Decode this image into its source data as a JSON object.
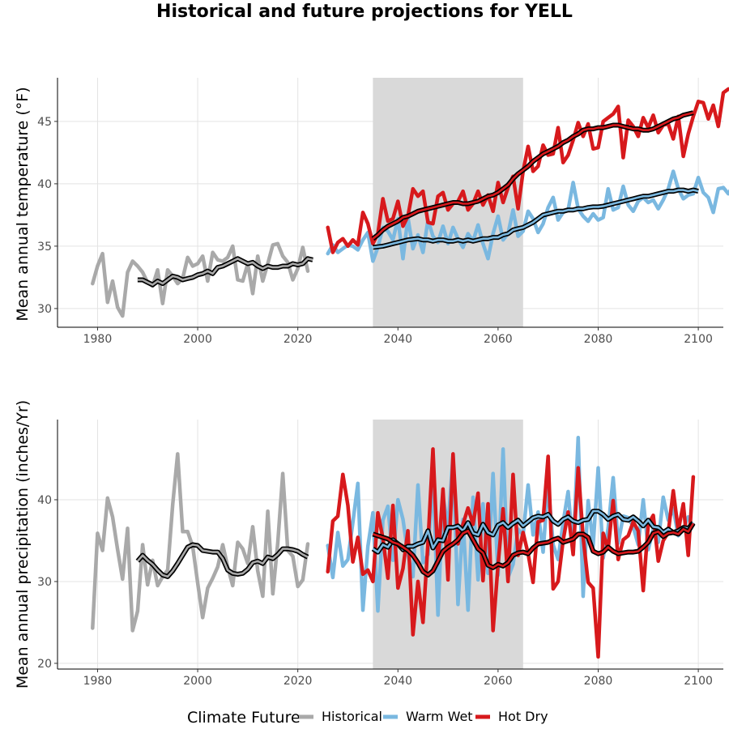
{
  "title": "Historical and future projections for YELL",
  "legend": {
    "title": "Climate Future",
    "items": [
      {
        "key": "historical",
        "label": "Historical",
        "color": "#a9a9a9"
      },
      {
        "key": "warm_wet",
        "label": "Warm Wet",
        "color": "#7ab8e0"
      },
      {
        "key": "hot_dry",
        "label": "Hot Dry",
        "color": "#d7191c"
      }
    ]
  },
  "chart_data": [
    {
      "type": "line",
      "ylabel": "Mean annual temperature (°F)",
      "xlabel": "",
      "xlim": [
        1972,
        2105
      ],
      "ylim": [
        28.5,
        48.5
      ],
      "x_ticks": [
        1980,
        2000,
        2020,
        2040,
        2060,
        2080,
        2100
      ],
      "y_ticks": [
        30,
        35,
        40,
        45
      ],
      "shaded_period": [
        2035,
        2065
      ],
      "grid": true,
      "series": [
        {
          "name": "Historical",
          "key": "historical",
          "color": "#a9a9a9",
          "start": 1979,
          "values": [
            32.0,
            33.4,
            34.4,
            30.5,
            32.2,
            30.1,
            29.4,
            32.9,
            33.8,
            33.4,
            32.9,
            32.1,
            31.8,
            33.1,
            30.4,
            33.1,
            32.6,
            32.0,
            32.4,
            34.1,
            33.4,
            33.6,
            34.2,
            32.2,
            34.5,
            33.9,
            33.8,
            34.1,
            35.0,
            32.3,
            32.2,
            33.6,
            31.2,
            34.2,
            32.2,
            33.6,
            35.1,
            35.2,
            34.2,
            33.7,
            32.3,
            33.2,
            34.9,
            33.0
          ]
        },
        {
          "name": "Historical smooth",
          "key": "historical",
          "color": "#a9a9a9",
          "smooth": true,
          "start": 1988,
          "values": [
            32.3,
            32.3,
            32.1,
            31.9,
            32.2,
            32.0,
            32.3,
            32.6,
            32.5,
            32.3,
            32.4,
            32.5,
            32.7,
            32.8,
            33.0,
            32.8,
            33.3,
            33.4,
            33.6,
            33.8,
            34.0,
            33.8,
            33.6,
            33.7,
            33.4,
            33.2,
            33.4,
            33.3,
            33.3,
            33.4,
            33.4,
            33.6,
            33.5,
            33.6,
            34.0,
            33.9
          ]
        },
        {
          "name": "Warm Wet",
          "key": "warm_wet",
          "color": "#7ab8e0",
          "start": 2026,
          "values": [
            34.4,
            35.1,
            34.5,
            34.8,
            35.1,
            35.0,
            34.7,
            35.5,
            36.1,
            33.8,
            34.9,
            36.5,
            36.2,
            35.5,
            37.2,
            34.0,
            37.3,
            34.8,
            35.9,
            34.5,
            37.1,
            35.8,
            35.3,
            36.6,
            35.2,
            36.5,
            35.6,
            34.9,
            36.0,
            35.4,
            36.7,
            35.2,
            34.0,
            36.0,
            37.4,
            35.5,
            36.0,
            37.9,
            35.8,
            36.2,
            37.8,
            37.2,
            36.1,
            36.8,
            38.1,
            38.9,
            37.1,
            37.7,
            37.9,
            40.1,
            38.0,
            37.4,
            37.0,
            37.6,
            37.1,
            37.3,
            39.6,
            37.9,
            38.1,
            39.8,
            38.3,
            37.8,
            38.6,
            38.9,
            38.5,
            38.7,
            38.0,
            38.7,
            39.6,
            41.0,
            39.6,
            38.8,
            39.1,
            39.2,
            40.5,
            39.3,
            38.9,
            37.7,
            39.6,
            39.7,
            39.2,
            39.9,
            40.2,
            40.0
          ]
        },
        {
          "name": "Warm Wet smooth",
          "key": "warm_wet",
          "color": "#7ab8e0",
          "smooth": true,
          "start": 2035,
          "values": [
            34.9,
            34.95,
            35.0,
            35.1,
            35.2,
            35.3,
            35.4,
            35.5,
            35.55,
            35.6,
            35.5,
            35.5,
            35.4,
            35.5,
            35.5,
            35.4,
            35.4,
            35.5,
            35.4,
            35.5,
            35.4,
            35.5,
            35.6,
            35.6,
            35.7,
            35.7,
            35.9,
            36.0,
            36.3,
            36.4,
            36.5,
            36.7,
            36.9,
            37.2,
            37.5,
            37.6,
            37.7,
            37.8,
            37.8,
            37.9,
            37.9,
            38.0,
            38.0,
            38.1,
            38.15,
            38.15,
            38.2,
            38.3,
            38.4,
            38.5,
            38.6,
            38.7,
            38.8,
            38.9,
            39.0,
            39.0,
            39.1,
            39.2,
            39.3,
            39.4,
            39.4,
            39.5,
            39.5,
            39.4,
            39.5,
            39.4
          ]
        },
        {
          "name": "Hot Dry",
          "key": "hot_dry",
          "color": "#d7191c",
          "start": 2026,
          "values": [
            36.5,
            34.5,
            35.3,
            35.6,
            35.0,
            35.5,
            35.1,
            37.7,
            36.8,
            35.2,
            36.0,
            38.8,
            37.0,
            37.2,
            38.6,
            36.6,
            37.4,
            39.6,
            39.0,
            39.4,
            36.9,
            36.8,
            39.0,
            39.3,
            37.9,
            38.4,
            38.6,
            39.4,
            37.9,
            38.4,
            39.4,
            38.3,
            39.1,
            37.8,
            40.1,
            38.5,
            39.7,
            40.6,
            38.0,
            41.0,
            43.0,
            41.0,
            41.4,
            43.1,
            42.3,
            42.4,
            44.5,
            41.7,
            42.3,
            43.5,
            44.9,
            43.8,
            44.8,
            42.8,
            42.9,
            45.0,
            45.3,
            45.6,
            46.2,
            42.1,
            45.1,
            44.6,
            43.8,
            45.3,
            44.5,
            45.5,
            44.1,
            44.7,
            44.8,
            43.6,
            45.4,
            42.2,
            44.0,
            45.4,
            46.6,
            46.5,
            45.2,
            46.3,
            44.6,
            47.3,
            47.6
          ]
        },
        {
          "name": "Hot Dry smooth",
          "key": "hot_dry",
          "color": "#d7191c",
          "smooth": true,
          "start": 2035,
          "values": [
            35.6,
            35.9,
            36.3,
            36.6,
            36.8,
            37.0,
            37.3,
            37.4,
            37.6,
            37.8,
            37.9,
            38.0,
            38.1,
            38.2,
            38.3,
            38.4,
            38.5,
            38.5,
            38.4,
            38.4,
            38.5,
            38.6,
            38.8,
            39.0,
            39.1,
            39.3,
            39.6,
            39.9,
            40.4,
            40.8,
            41.1,
            41.4,
            41.8,
            42.1,
            42.4,
            42.6,
            42.8,
            43.0,
            43.3,
            43.5,
            43.8,
            44.0,
            44.3,
            44.4,
            44.4,
            44.5,
            44.5,
            44.6,
            44.7,
            44.7,
            44.6,
            44.5,
            44.4,
            44.4,
            44.3,
            44.3,
            44.4,
            44.6,
            44.8,
            45.0,
            45.2,
            45.3,
            45.5,
            45.6,
            45.7
          ]
        }
      ]
    },
    {
      "type": "line",
      "ylabel": "Mean annual precipitation (inches/Yr)",
      "xlabel": "",
      "xlim": [
        1972,
        2105
      ],
      "ylim": [
        19.3,
        49.8
      ],
      "x_ticks": [
        1980,
        2000,
        2020,
        2040,
        2060,
        2080,
        2100
      ],
      "y_ticks": [
        20,
        30,
        40
      ],
      "shaded_period": [
        2035,
        2065
      ],
      "grid": true,
      "series": [
        {
          "name": "Historical",
          "key": "historical",
          "color": "#a9a9a9",
          "start": 1979,
          "values": [
            24.3,
            35.9,
            33.8,
            40.2,
            37.9,
            33.9,
            30.3,
            36.5,
            24.0,
            26.4,
            34.5,
            29.6,
            32.6,
            29.5,
            30.6,
            31.4,
            39.4,
            45.6,
            36.1,
            36.1,
            34.3,
            29.8,
            25.6,
            29.2,
            30.4,
            31.8,
            34.5,
            31.8,
            29.5,
            34.8,
            34.0,
            32.2,
            36.7,
            31.3,
            28.2,
            38.6,
            28.5,
            34.7,
            43.2,
            33.8,
            33.1,
            29.4,
            30.2,
            34.6
          ]
        },
        {
          "name": "Historical smooth",
          "key": "historical",
          "color": "#a9a9a9",
          "smooth": true,
          "start": 1988,
          "values": [
            32.5,
            33.2,
            32.6,
            32.1,
            31.4,
            30.8,
            30.6,
            31.3,
            32.2,
            33.2,
            34.2,
            34.5,
            34.4,
            33.8,
            33.7,
            33.6,
            33.6,
            32.8,
            31.4,
            31.0,
            30.9,
            31.0,
            31.5,
            32.3,
            32.5,
            32.2,
            33.0,
            32.8,
            33.3,
            34.0,
            34.0,
            33.9,
            33.7,
            33.3,
            33.0
          ]
        },
        {
          "name": "Warm Wet",
          "key": "warm_wet",
          "color": "#7ab8e0",
          "start": 2026,
          "values": [
            34.4,
            30.5,
            36.0,
            31.9,
            32.7,
            37.2,
            42.0,
            26.5,
            34.3,
            38.4,
            26.4,
            37.5,
            39.2,
            32.6,
            40.0,
            37.6,
            33.3,
            30.6,
            41.8,
            32.3,
            33.3,
            43.1,
            25.9,
            40.4,
            36.6,
            45.5,
            27.2,
            37.6,
            26.5,
            40.3,
            30.2,
            39.5,
            31.0,
            43.2,
            30.8,
            46.2,
            30.5,
            32.1,
            36.4,
            35.7,
            41.8,
            35.7,
            38.5,
            33.6,
            42.0,
            34.5,
            32.7,
            37.2,
            41.0,
            34.0,
            47.6,
            28.2,
            39.9,
            34.4,
            43.9,
            32.9,
            36.5,
            42.7,
            34.7,
            38.0,
            37.8,
            36.7,
            34.5,
            40.0,
            33.9,
            36.4,
            34.8,
            40.3,
            37.5,
            38.9,
            35.6,
            36.4,
            37.9
          ]
        },
        {
          "name": "Warm Wet smooth",
          "key": "warm_wet",
          "color": "#7ab8e0",
          "smooth": true,
          "start": 2035,
          "values": [
            34.0,
            33.6,
            34.5,
            34.2,
            35.1,
            34.6,
            33.9,
            34.3,
            34.3,
            34.6,
            34.8,
            36.2,
            34.1,
            35.1,
            35.0,
            36.6,
            36.6,
            36.8,
            36.2,
            37.2,
            35.9,
            35.7,
            37.0,
            36.0,
            35.7,
            36.9,
            37.2,
            36.6,
            37.1,
            37.5,
            36.8,
            37.3,
            37.8,
            38.0,
            37.9,
            38.2,
            37.4,
            37.0,
            37.6,
            37.9,
            37.4,
            37.2,
            37.5,
            37.6,
            38.6,
            38.6,
            38.2,
            37.6,
            38.0,
            38.2,
            37.6,
            37.5,
            37.9,
            37.4,
            36.8,
            37.5,
            36.7,
            36.6,
            36.0,
            36.4,
            36.0,
            36.2,
            36.6,
            36.5,
            37.2
          ]
        },
        {
          "name": "Hot Dry",
          "key": "hot_dry",
          "color": "#d7191c",
          "start": 2026,
          "values": [
            31.2,
            37.4,
            38.0,
            43.1,
            39.3,
            32.4,
            35.4,
            30.9,
            31.4,
            30.0,
            38.4,
            35.3,
            30.4,
            39.3,
            29.2,
            31.6,
            36.2,
            23.5,
            30.0,
            25.0,
            34.8,
            46.2,
            32.3,
            41.3,
            30.2,
            45.6,
            34.6,
            37.0,
            39.0,
            37.0,
            40.8,
            30.1,
            39.5,
            24.0,
            32.1,
            38.9,
            30.0,
            43.1,
            33.2,
            36.0,
            33.4,
            29.9,
            37.3,
            37.5,
            45.3,
            29.1,
            30.0,
            35.0,
            38.5,
            33.3,
            43.9,
            35.4,
            29.9,
            29.2,
            20.8,
            35.9,
            34.0,
            39.9,
            32.7,
            35.1,
            35.6,
            37.3,
            36.2,
            28.9,
            37.0,
            38.1,
            32.5,
            35.0,
            36.0,
            41.1,
            36.2,
            39.5,
            33.2,
            42.8
          ]
        },
        {
          "name": "Hot Dry smooth",
          "key": "hot_dry",
          "color": "#d7191c",
          "smooth": true,
          "start": 2035,
          "values": [
            35.8,
            35.6,
            35.4,
            35.2,
            34.8,
            34.6,
            34.2,
            33.8,
            33.2,
            32.3,
            31.2,
            30.8,
            31.3,
            32.5,
            33.7,
            34.2,
            34.6,
            35.1,
            35.9,
            36.2,
            35.1,
            34.0,
            33.5,
            32.0,
            31.7,
            32.1,
            31.9,
            32.3,
            33.2,
            33.5,
            33.6,
            33.4,
            34.1,
            34.6,
            34.7,
            34.8,
            35.1,
            35.3,
            34.8,
            35.0,
            35.2,
            35.8,
            35.8,
            35.4,
            33.7,
            33.4,
            33.6,
            34.2,
            33.7,
            33.4,
            33.5,
            33.6,
            33.6,
            33.7,
            34.2,
            34.8,
            35.9,
            36.1,
            35.5,
            35.9,
            36.0,
            35.8,
            36.4,
            36.1,
            37.1
          ]
        }
      ]
    }
  ]
}
